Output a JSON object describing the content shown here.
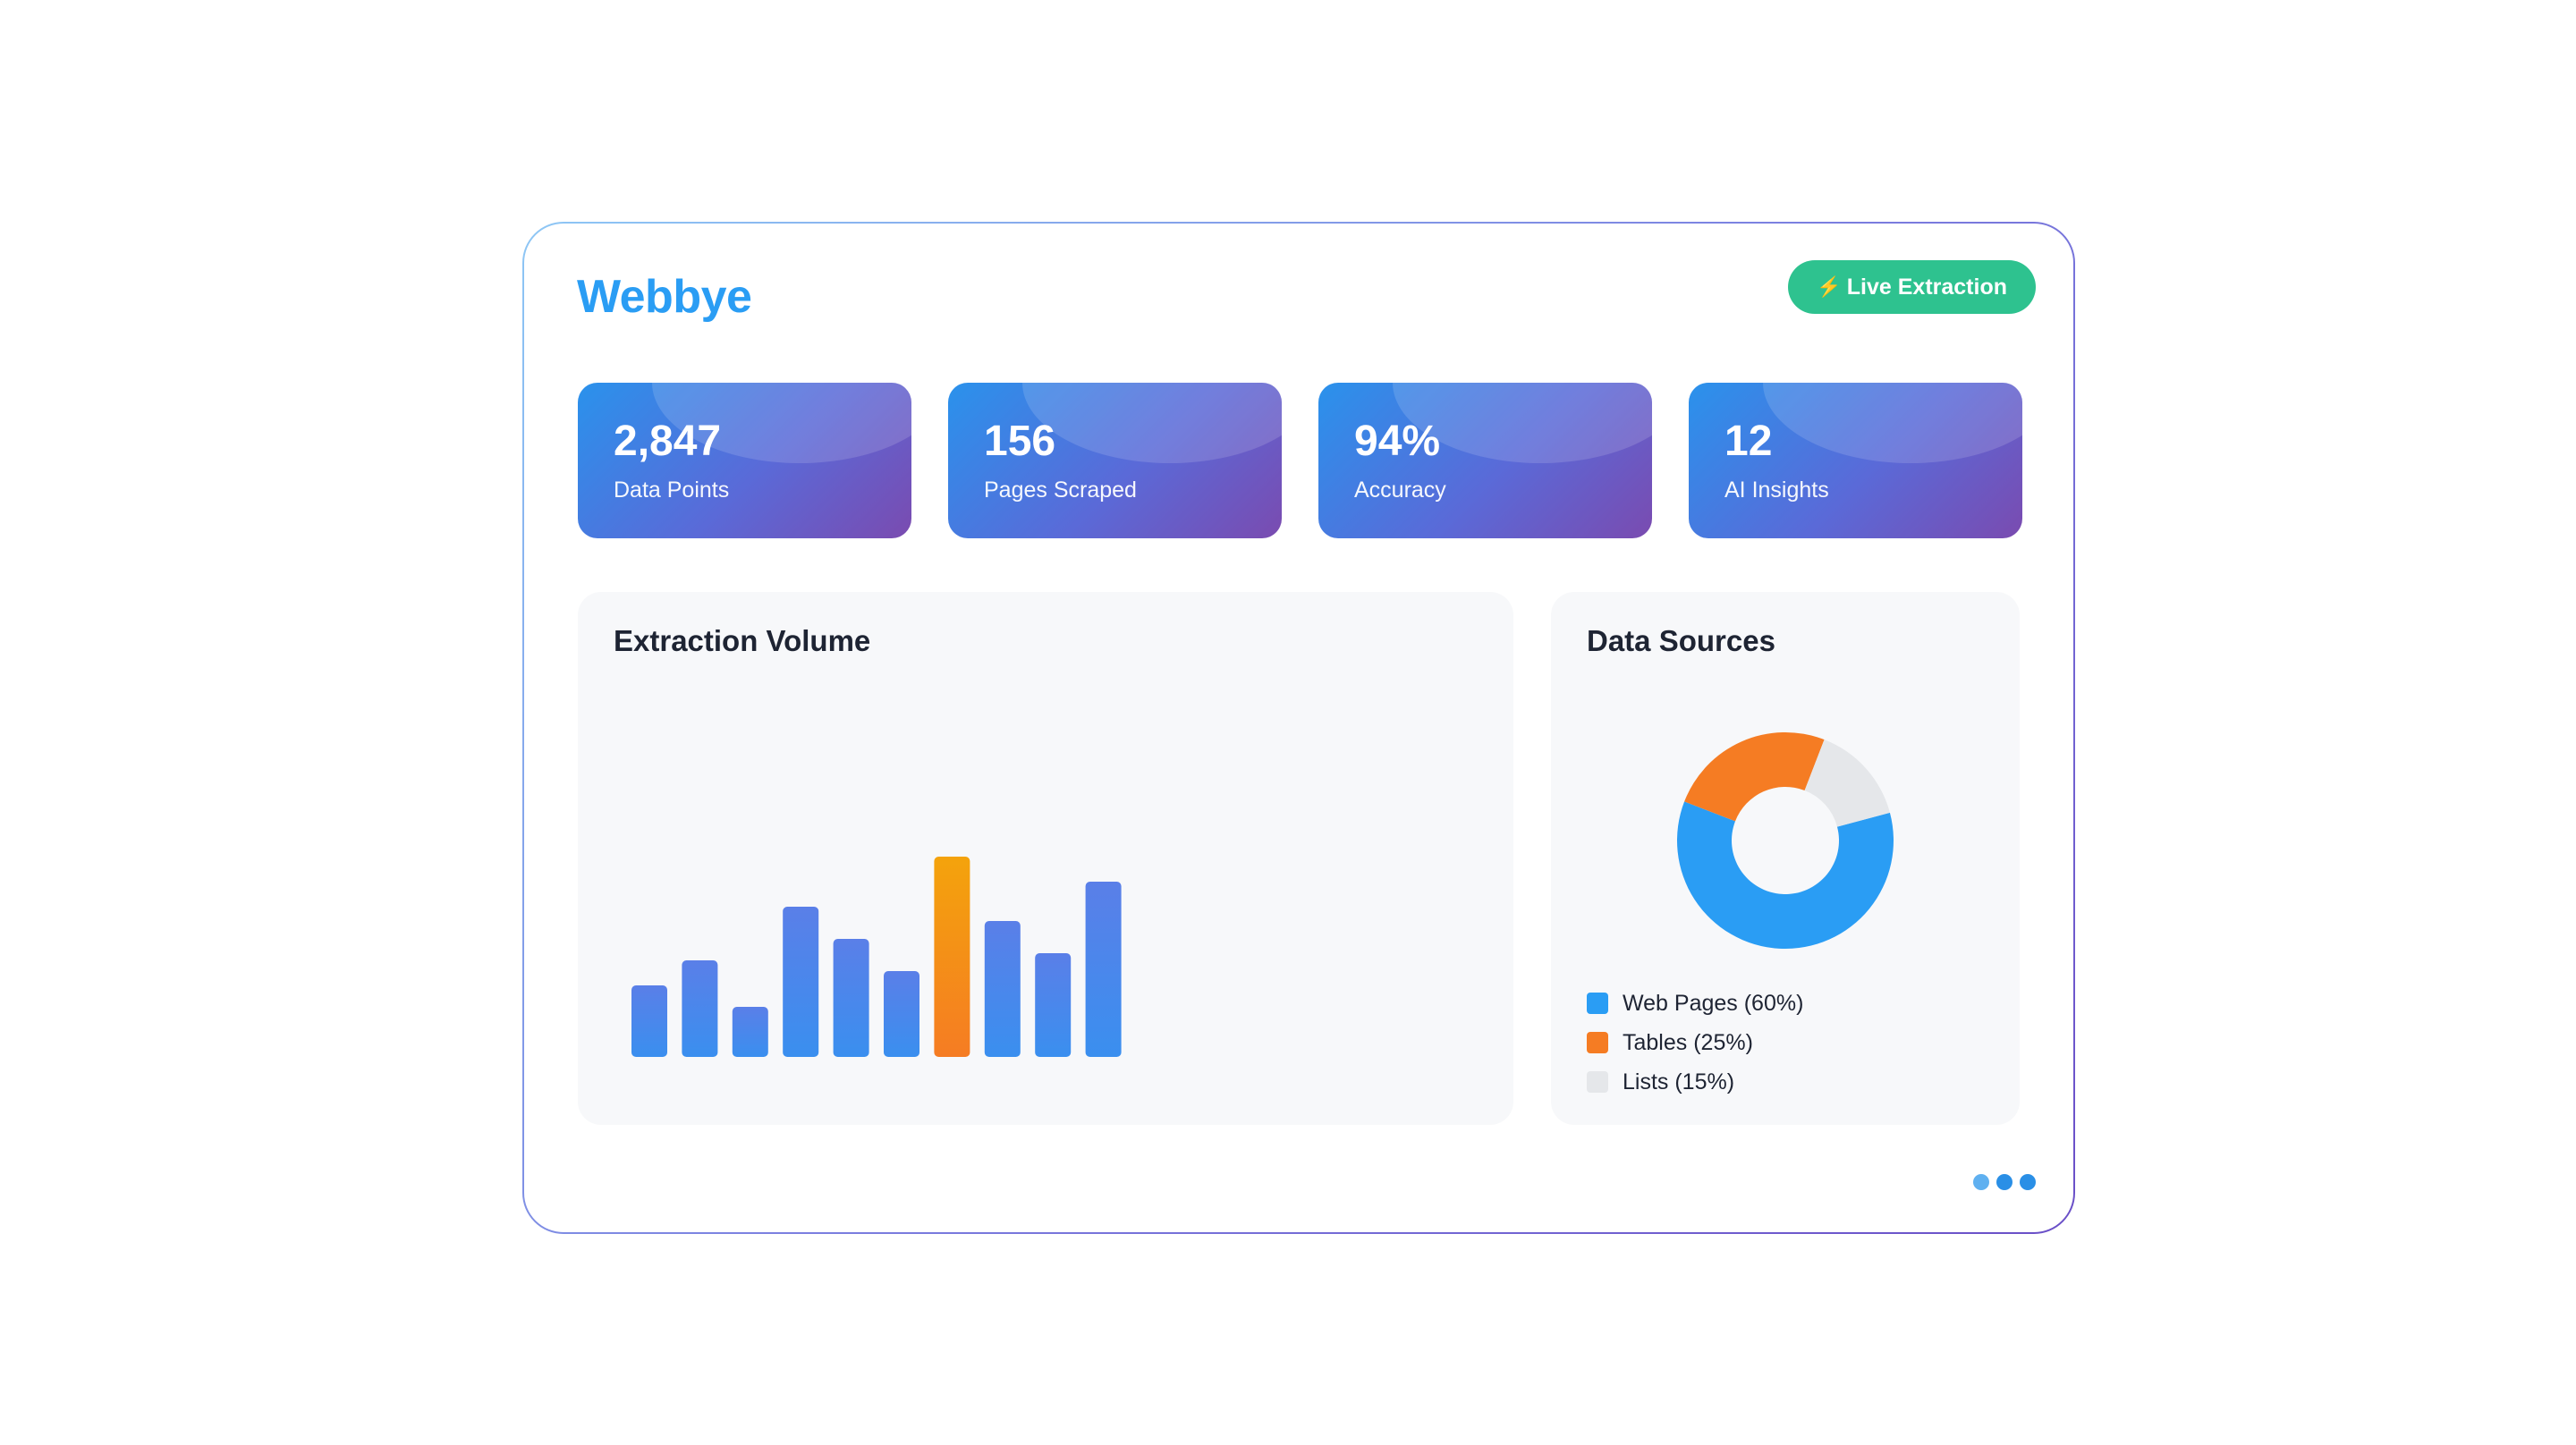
{
  "app": {
    "brand": "Webbye",
    "live_button": {
      "label": "Live Extraction",
      "icon": "lightning-icon"
    }
  },
  "colors": {
    "brand": "#2a9df4",
    "live": "#2ec28f",
    "bar": "#4f86ec",
    "bar_highlight": "#f59518",
    "web_pages": "#2a9df4",
    "tables": "#f57c23",
    "lists": "#e5e7ea"
  },
  "stats": [
    {
      "value": "2,847",
      "label": "Data Points"
    },
    {
      "value": "156",
      "label": "Pages Scraped"
    },
    {
      "value": "94%",
      "label": "Accuracy"
    },
    {
      "value": "12",
      "label": "AI Insights"
    }
  ],
  "volume_panel": {
    "title": "Extraction Volume"
  },
  "sources_panel": {
    "title": "Data Sources"
  },
  "chart_data": [
    {
      "type": "bar",
      "title": "Extraction Volume",
      "values": [
        20,
        27,
        14,
        42,
        33,
        24,
        56,
        38,
        29,
        49
      ],
      "highlight_index": 6,
      "ylim": [
        0,
        100
      ],
      "grid": false
    },
    {
      "type": "pie",
      "title": "Data Sources",
      "donut": true,
      "slices": [
        {
          "label": "Web Pages (60%)",
          "value": 60,
          "color": "#2a9df4"
        },
        {
          "label": "Tables (25%)",
          "value": 25,
          "color": "#f57c23"
        },
        {
          "label": "Lists (15%)",
          "value": 15,
          "color": "#e5e7ea"
        }
      ],
      "legend": "bottom-left"
    }
  ],
  "pager_dots": [
    {
      "color": "#5fb0f0"
    },
    {
      "color": "#2a8fe6"
    },
    {
      "color": "#2a8fe6"
    }
  ]
}
